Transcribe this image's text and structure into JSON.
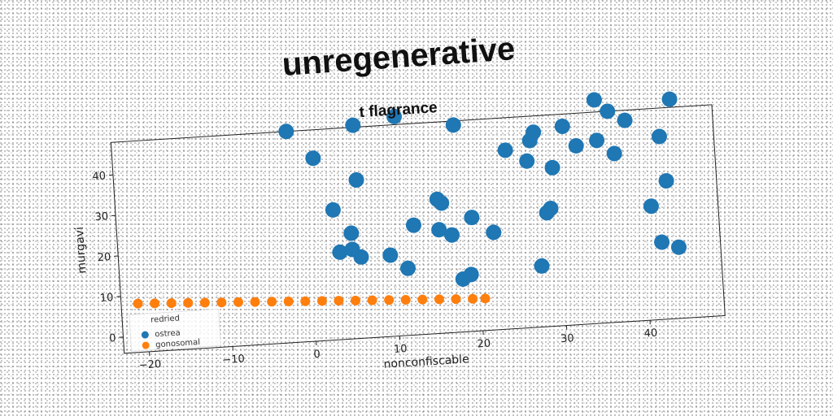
{
  "figure": {
    "suptitle": "unregenerative"
  },
  "chart_data": {
    "type": "scatter",
    "title": "t flagrance",
    "xlabel": "nonconfiscable",
    "ylabel": "murgavi",
    "xlim": [
      -23,
      49
    ],
    "ylim": [
      -4,
      48
    ],
    "xticks": [
      -20,
      -10,
      0,
      10,
      20,
      30,
      40
    ],
    "yticks": [
      0,
      10,
      20,
      30,
      40
    ],
    "grid": false,
    "legend": {
      "title": "redried",
      "location": "lower-left",
      "entries": [
        "ostrea",
        "gonosomal"
      ]
    },
    "series": [
      {
        "name": "ostrea",
        "color": "#1f77b4",
        "points": [
          [
            -2,
            48
          ],
          [
            1,
            41
          ],
          [
            6,
            48.5
          ],
          [
            11,
            50
          ],
          [
            18,
            47
          ],
          [
            35,
            51
          ],
          [
            36.5,
            48
          ],
          [
            44,
            50
          ],
          [
            6,
            35
          ],
          [
            3,
            28
          ],
          [
            15.5,
            29
          ],
          [
            16,
            28
          ],
          [
            24,
            40
          ],
          [
            26.5,
            37
          ],
          [
            27,
            42
          ],
          [
            27.5,
            44
          ],
          [
            29.5,
            35
          ],
          [
            31,
            45
          ],
          [
            32.5,
            40
          ],
          [
            35,
            41
          ],
          [
            37,
            37.5
          ],
          [
            38.5,
            45.5
          ],
          [
            42.5,
            41
          ],
          [
            43,
            30
          ],
          [
            5,
            22
          ],
          [
            3.5,
            17.5
          ],
          [
            5,
            18
          ],
          [
            6,
            16
          ],
          [
            9.5,
            16
          ],
          [
            12.5,
            23
          ],
          [
            15.5,
            21.5
          ],
          [
            17,
            20
          ],
          [
            19.5,
            24
          ],
          [
            22,
            20
          ],
          [
            28.5,
            24
          ],
          [
            29,
            25
          ],
          [
            41,
            24
          ],
          [
            11.5,
            12.5
          ],
          [
            18,
            9
          ],
          [
            19,
            10
          ],
          [
            27.5,
            11
          ],
          [
            42,
            15
          ],
          [
            44,
            13.5
          ]
        ]
      },
      {
        "name": "gonosomal",
        "color": "#ff7f0e",
        "points": [
          [
            -21,
            8
          ],
          [
            -19,
            7.8
          ],
          [
            -17,
            7.6
          ],
          [
            -15,
            7.4
          ],
          [
            -13,
            7.2
          ],
          [
            -11,
            7.0
          ],
          [
            -9,
            6.8
          ],
          [
            -7,
            6.6
          ],
          [
            -5,
            6.4
          ],
          [
            -3,
            6.2
          ],
          [
            -1,
            6.0
          ],
          [
            1,
            5.8
          ],
          [
            3,
            5.6
          ],
          [
            5,
            5.4
          ],
          [
            7,
            5.2
          ],
          [
            9,
            5.0
          ],
          [
            11,
            4.8
          ],
          [
            13,
            4.6
          ],
          [
            15,
            4.4
          ],
          [
            17,
            4.2
          ],
          [
            19,
            4.0
          ],
          [
            20.5,
            3.9
          ]
        ]
      }
    ]
  }
}
